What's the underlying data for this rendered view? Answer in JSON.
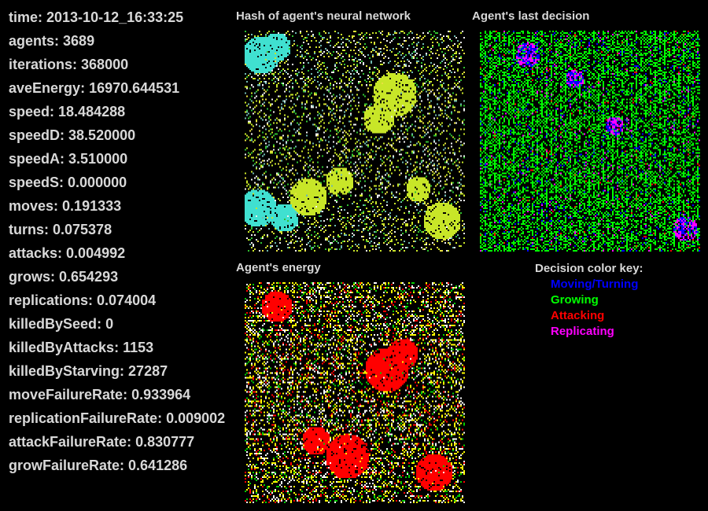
{
  "stats": [
    {
      "label": "time",
      "value": "2013-10-12_16:33:25"
    },
    {
      "label": "agents",
      "value": "3689"
    },
    {
      "label": "iterations",
      "value": "368000"
    },
    {
      "label": "aveEnergy",
      "value": "16970.644531"
    },
    {
      "label": "speed",
      "value": "18.484288"
    },
    {
      "label": "speedD",
      "value": "38.520000"
    },
    {
      "label": "speedA",
      "value": "3.510000"
    },
    {
      "label": "speedS",
      "value": "0.000000"
    },
    {
      "label": "moves",
      "value": "0.191333"
    },
    {
      "label": "turns",
      "value": "0.075378"
    },
    {
      "label": "attacks",
      "value": "0.004992"
    },
    {
      "label": "grows",
      "value": "0.654293"
    },
    {
      "label": "replications",
      "value": "0.074004"
    },
    {
      "label": "killedBySeed",
      "value": "0"
    },
    {
      "label": "killedByAttacks",
      "value": "1153"
    },
    {
      "label": "killedByStarving",
      "value": "27287"
    },
    {
      "label": "moveFailureRate",
      "value": "0.933964"
    },
    {
      "label": "replicationFailureRate",
      "value": "0.009002"
    },
    {
      "label": "attackFailureRate",
      "value": "0.830777"
    },
    {
      "label": "growFailureRate",
      "value": "0.641286"
    }
  ],
  "panels": {
    "hash": {
      "title": "Hash of agent's neural network"
    },
    "decision": {
      "title": "Agent's last decision"
    },
    "energy": {
      "title": "Agent's energy"
    }
  },
  "key": {
    "title": "Decision color key:",
    "items": [
      {
        "label": "Moving/Turning",
        "color": "#0000ff"
      },
      {
        "label": "Growing",
        "color": "#00ff00"
      },
      {
        "label": "Attacking",
        "color": "#ff0000"
      },
      {
        "label": "Replicating",
        "color": "#ff00ff"
      }
    ]
  },
  "colors": {
    "text": "#d8d8d8",
    "background": "#000000",
    "hash_palette": [
      "#40e0d0",
      "#c8e628",
      "#30c030",
      "#f0f0f0",
      "#e8e040",
      "#6fb8b0"
    ],
    "energy_palette": [
      "#ff0000",
      "#00cc00",
      "#ffff00",
      "#ffffff"
    ]
  }
}
